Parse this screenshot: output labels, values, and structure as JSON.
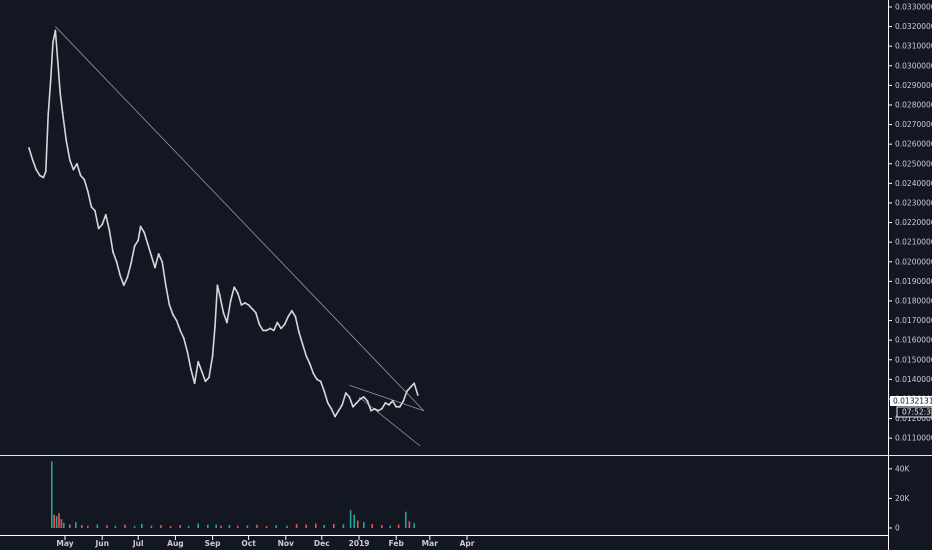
{
  "chart_data": {
    "type": "line",
    "x_ticks": [
      "May",
      "Jun",
      "Jul",
      "Aug",
      "Sep",
      "Oct",
      "Nov",
      "Dec",
      "2019",
      "Feb",
      "Mar",
      "Apr"
    ],
    "price_ticks": [
      "0.03300000",
      "0.03200000",
      "0.03100000",
      "0.03000000",
      "0.02900000",
      "0.02800000",
      "0.02700000",
      "0.02600000",
      "0.02500000",
      "0.02400000",
      "0.02300000",
      "0.02200000",
      "0.02100000",
      "0.02000000",
      "0.01900000",
      "0.01800000",
      "0.01700000",
      "0.01600000",
      "0.01500000",
      "0.01400000",
      "0.01300000",
      "0.01200000",
      "0.01100000"
    ],
    "price_ylim": [
      0.0106,
      0.0331
    ],
    "current_price": "0.01321312",
    "countdown": "07:52:38",
    "volume_ticks": [
      {
        "label": "40K",
        "value": 40000
      },
      {
        "label": "20K",
        "value": 20000
      },
      {
        "label": "0",
        "value": 0
      }
    ],
    "volume_ylim": [
      0,
      48000
    ],
    "series": [
      {
        "type": "line",
        "color": "#d5d7dd",
        "points": [
          [
            "2018-04-01",
            0.0258
          ],
          [
            "2018-04-04",
            0.0252
          ],
          [
            "2018-04-07",
            0.0247
          ],
          [
            "2018-04-10",
            0.0244
          ],
          [
            "2018-04-13",
            0.0243
          ],
          [
            "2018-04-15",
            0.0246
          ],
          [
            "2018-04-17",
            0.0275
          ],
          [
            "2018-04-19",
            0.0292
          ],
          [
            "2018-04-21",
            0.0312
          ],
          [
            "2018-04-23",
            0.0318
          ],
          [
            "2018-04-25",
            0.0302
          ],
          [
            "2018-04-27",
            0.0286
          ],
          [
            "2018-04-29",
            0.0276
          ],
          [
            "2018-05-02",
            0.0262
          ],
          [
            "2018-05-05",
            0.0252
          ],
          [
            "2018-05-08",
            0.0247
          ],
          [
            "2018-05-11",
            0.025
          ],
          [
            "2018-05-14",
            0.0244
          ],
          [
            "2018-05-17",
            0.0242
          ],
          [
            "2018-05-20",
            0.0236
          ],
          [
            "2018-05-23",
            0.0228
          ],
          [
            "2018-05-26",
            0.0226
          ],
          [
            "2018-05-29",
            0.0217
          ],
          [
            "2018-06-01",
            0.0219
          ],
          [
            "2018-06-04",
            0.0224
          ],
          [
            "2018-06-07",
            0.0216
          ],
          [
            "2018-06-10",
            0.0205
          ],
          [
            "2018-06-13",
            0.02
          ],
          [
            "2018-06-16",
            0.0193
          ],
          [
            "2018-06-19",
            0.0188
          ],
          [
            "2018-06-22",
            0.0192
          ],
          [
            "2018-06-25",
            0.0199
          ],
          [
            "2018-06-28",
            0.0208
          ],
          [
            "2018-07-01",
            0.0211
          ],
          [
            "2018-07-03",
            0.0218
          ],
          [
            "2018-07-06",
            0.0215
          ],
          [
            "2018-07-09",
            0.0209
          ],
          [
            "2018-07-12",
            0.0203
          ],
          [
            "2018-07-15",
            0.0197
          ],
          [
            "2018-07-18",
            0.0204
          ],
          [
            "2018-07-21",
            0.02
          ],
          [
            "2018-07-24",
            0.0188
          ],
          [
            "2018-07-27",
            0.0178
          ],
          [
            "2018-07-30",
            0.0173
          ],
          [
            "2018-08-02",
            0.017
          ],
          [
            "2018-08-05",
            0.0165
          ],
          [
            "2018-08-08",
            0.0161
          ],
          [
            "2018-08-11",
            0.0154
          ],
          [
            "2018-08-14",
            0.0145
          ],
          [
            "2018-08-17",
            0.0138
          ],
          [
            "2018-08-20",
            0.0149
          ],
          [
            "2018-08-23",
            0.0144
          ],
          [
            "2018-08-26",
            0.0139
          ],
          [
            "2018-08-29",
            0.0141
          ],
          [
            "2018-09-01",
            0.0152
          ],
          [
            "2018-09-03",
            0.0167
          ],
          [
            "2018-09-05",
            0.0188
          ],
          [
            "2018-09-07",
            0.0183
          ],
          [
            "2018-09-10",
            0.0174
          ],
          [
            "2018-09-13",
            0.0169
          ],
          [
            "2018-09-16",
            0.018
          ],
          [
            "2018-09-19",
            0.0187
          ],
          [
            "2018-09-22",
            0.0184
          ],
          [
            "2018-09-25",
            0.0178
          ],
          [
            "2018-09-28",
            0.0179
          ],
          [
            "2018-10-01",
            0.0178
          ],
          [
            "2018-10-04",
            0.0176
          ],
          [
            "2018-10-07",
            0.0174
          ],
          [
            "2018-10-10",
            0.0168
          ],
          [
            "2018-10-13",
            0.0165
          ],
          [
            "2018-10-16",
            0.0165
          ],
          [
            "2018-10-19",
            0.0166
          ],
          [
            "2018-10-22",
            0.0165
          ],
          [
            "2018-10-25",
            0.0169
          ],
          [
            "2018-10-28",
            0.0166
          ],
          [
            "2018-10-31",
            0.0168
          ],
          [
            "2018-11-03",
            0.0172
          ],
          [
            "2018-11-06",
            0.0175
          ],
          [
            "2018-11-09",
            0.0172
          ],
          [
            "2018-11-12",
            0.0164
          ],
          [
            "2018-11-15",
            0.0158
          ],
          [
            "2018-11-18",
            0.0152
          ],
          [
            "2018-11-21",
            0.0148
          ],
          [
            "2018-11-24",
            0.0143
          ],
          [
            "2018-11-27",
            0.014
          ],
          [
            "2018-11-30",
            0.0139
          ],
          [
            "2018-12-03",
            0.0134
          ],
          [
            "2018-12-06",
            0.0128
          ],
          [
            "2018-12-09",
            0.0125
          ],
          [
            "2018-12-12",
            0.0121
          ],
          [
            "2018-12-15",
            0.0124
          ],
          [
            "2018-12-18",
            0.0127
          ],
          [
            "2018-12-21",
            0.0133
          ],
          [
            "2018-12-24",
            0.0131
          ],
          [
            "2018-12-27",
            0.0126
          ],
          [
            "2018-12-30",
            0.0128
          ],
          [
            "2019-01-02",
            0.013
          ],
          [
            "2019-01-05",
            0.0131
          ],
          [
            "2019-01-08",
            0.0129
          ],
          [
            "2019-01-11",
            0.0124
          ],
          [
            "2019-01-14",
            0.0125
          ],
          [
            "2019-01-17",
            0.0124
          ],
          [
            "2019-01-20",
            0.0125
          ],
          [
            "2019-01-23",
            0.0128
          ],
          [
            "2019-01-26",
            0.0127
          ],
          [
            "2019-01-29",
            0.0129
          ],
          [
            "2019-02-01",
            0.0126
          ],
          [
            "2019-02-04",
            0.0126
          ],
          [
            "2019-02-07",
            0.0129
          ],
          [
            "2019-02-10",
            0.0134
          ],
          [
            "2019-02-13",
            0.0136
          ],
          [
            "2019-02-16",
            0.0138
          ],
          [
            "2019-02-19",
            0.0132
          ]
        ]
      }
    ],
    "trendlines": [
      {
        "color": "#9598a1",
        "from": [
          "2018-04-23",
          0.032
        ],
        "to": [
          "2019-02-24",
          0.0124
        ]
      },
      {
        "color": "#9598a1",
        "from": [
          "2018-12-24",
          0.0137
        ],
        "to": [
          "2019-02-24",
          0.0124
        ]
      },
      {
        "color": "#9598a1",
        "from": [
          "2019-01-01",
          0.0131
        ],
        "to": [
          "2019-02-21",
          0.0106
        ]
      }
    ],
    "volume": [
      [
        "2018-04-20",
        45000,
        "#26a69a"
      ],
      [
        "2018-04-22",
        9000,
        "#ef5350"
      ],
      [
        "2018-04-24",
        8000,
        "#26a69a"
      ],
      [
        "2018-04-26",
        10000,
        "#ef5350"
      ],
      [
        "2018-04-28",
        6000,
        "#ef5350"
      ],
      [
        "2018-04-30",
        3500,
        "#26a69a"
      ],
      [
        "2018-05-05",
        2500,
        "#ef5350"
      ],
      [
        "2018-05-10",
        4000,
        "#26a69a"
      ],
      [
        "2018-05-15",
        2000,
        "#ef5350"
      ],
      [
        "2018-05-20",
        1500,
        "#ef5350"
      ],
      [
        "2018-05-28",
        2500,
        "#26a69a"
      ],
      [
        "2018-06-05",
        1800,
        "#ef5350"
      ],
      [
        "2018-06-12",
        1500,
        "#26a69a"
      ],
      [
        "2018-06-20",
        2200,
        "#ef5350"
      ],
      [
        "2018-06-28",
        1200,
        "#26a69a"
      ],
      [
        "2018-07-04",
        2800,
        "#26a69a"
      ],
      [
        "2018-07-12",
        1600,
        "#ef5350"
      ],
      [
        "2018-07-20",
        2000,
        "#ef5350"
      ],
      [
        "2018-07-28",
        1300,
        "#ef5350"
      ],
      [
        "2018-08-05",
        2000,
        "#ef5350"
      ],
      [
        "2018-08-12",
        1400,
        "#26a69a"
      ],
      [
        "2018-08-20",
        3000,
        "#26a69a"
      ],
      [
        "2018-08-28",
        2200,
        "#26a69a"
      ],
      [
        "2018-09-04",
        2400,
        "#26a69a"
      ],
      [
        "2018-09-08",
        1600,
        "#ef5350"
      ],
      [
        "2018-09-15",
        2000,
        "#26a69a"
      ],
      [
        "2018-09-22",
        1500,
        "#ef5350"
      ],
      [
        "2018-09-30",
        1800,
        "#26a69a"
      ],
      [
        "2018-10-08",
        2200,
        "#ef5350"
      ],
      [
        "2018-10-16",
        1300,
        "#ef5350"
      ],
      [
        "2018-10-24",
        1900,
        "#26a69a"
      ],
      [
        "2018-11-02",
        1600,
        "#26a69a"
      ],
      [
        "2018-11-10",
        2600,
        "#ef5350"
      ],
      [
        "2018-11-18",
        2300,
        "#ef5350"
      ],
      [
        "2018-11-26",
        3000,
        "#ef5350"
      ],
      [
        "2018-12-03",
        2100,
        "#26a69a"
      ],
      [
        "2018-12-11",
        2800,
        "#ef5350"
      ],
      [
        "2018-12-19",
        2500,
        "#26a69a"
      ],
      [
        "2018-12-25",
        12000,
        "#26a69a"
      ],
      [
        "2018-12-28",
        9000,
        "#26a69a"
      ],
      [
        "2018-12-31",
        5000,
        "#ef5350"
      ],
      [
        "2019-01-05",
        4000,
        "#26a69a"
      ],
      [
        "2019-01-12",
        2600,
        "#ef5350"
      ],
      [
        "2019-01-20",
        2000,
        "#ef5350"
      ],
      [
        "2019-01-27",
        1600,
        "#26a69a"
      ],
      [
        "2019-02-03",
        2400,
        "#ef5350"
      ],
      [
        "2019-02-09",
        11000,
        "#26a69a"
      ],
      [
        "2019-02-12",
        4500,
        "#ef5350"
      ],
      [
        "2019-02-16",
        3200,
        "#26a69a"
      ]
    ]
  }
}
